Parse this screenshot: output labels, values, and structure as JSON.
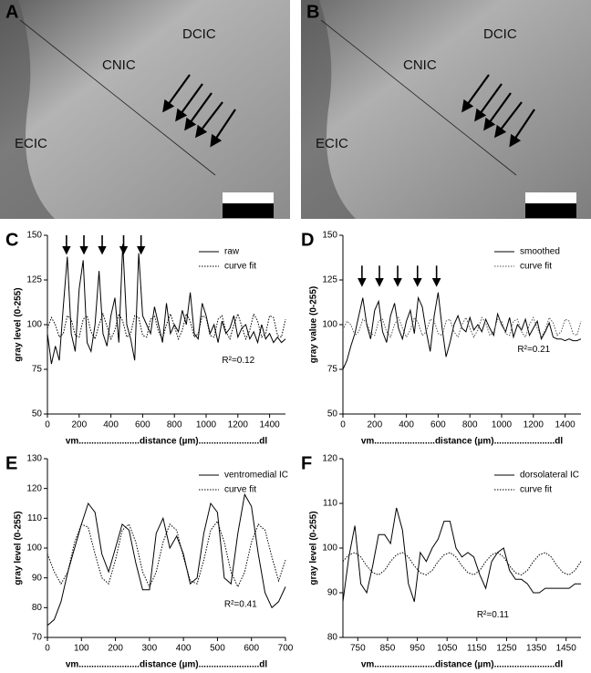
{
  "images": [
    {
      "letter": "A",
      "labels": [
        "DCIC",
        "CNIC",
        "ECIC"
      ]
    },
    {
      "letter": "B",
      "labels": [
        "DCIC",
        "CNIC",
        "ECIC"
      ]
    }
  ],
  "chart_data": [
    {
      "type": "line",
      "panel": "C",
      "ylabel": "gray level (0-255)",
      "xlabel": "vm........................distance (µm)........................dl",
      "x": [
        0,
        25,
        50,
        75,
        100,
        125,
        150,
        175,
        200,
        225,
        250,
        275,
        300,
        325,
        350,
        375,
        400,
        425,
        450,
        475,
        500,
        525,
        550,
        575,
        600,
        625,
        650,
        675,
        700,
        725,
        750,
        775,
        800,
        825,
        850,
        875,
        900,
        925,
        950,
        975,
        1000,
        1025,
        1050,
        1075,
        1100,
        1125,
        1150,
        1175,
        1200,
        1225,
        1250,
        1275,
        1300,
        1325,
        1350,
        1375,
        1400,
        1425,
        1450,
        1475,
        1500
      ],
      "series": [
        {
          "name": "raw",
          "color": "#000000",
          "style": "solid",
          "values": [
            95,
            78,
            88,
            80,
            110,
            138,
            95,
            85,
            120,
            136,
            90,
            85,
            100,
            130,
            95,
            88,
            105,
            115,
            90,
            145,
            100,
            92,
            80,
            140,
            105,
            100,
            95,
            110,
            100,
            90,
            112,
            95,
            100,
            96,
            108,
            100,
            118,
            95,
            92,
            112,
            105,
            95,
            100,
            90,
            102,
            95,
            98,
            105,
            93,
            98,
            100,
            92,
            96,
            90,
            100,
            92,
            95,
            90,
            93,
            90,
            92
          ]
        },
        {
          "name": "curve fit",
          "color": "#000000",
          "style": "dotted",
          "values": [
            98,
            104,
            100,
            93,
            95,
            105,
            103,
            94,
            93,
            103,
            105,
            96,
            92,
            100,
            106,
            99,
            92,
            97,
            106,
            102,
            93,
            95,
            105,
            104,
            94,
            93,
            103,
            105,
            96,
            92,
            100,
            106,
            99,
            92,
            97,
            106,
            102,
            93,
            95,
            105,
            104,
            94,
            93,
            103,
            105,
            96,
            92,
            100,
            106,
            99,
            92,
            97,
            106,
            102,
            93,
            95,
            105,
            104,
            94,
            93,
            103
          ]
        }
      ],
      "xlim": [
        0,
        1500
      ],
      "xticks": [
        0,
        200,
        400,
        600,
        800,
        1000,
        1200,
        1400
      ],
      "ylim": [
        50,
        150
      ],
      "yticks": [
        50,
        75,
        100,
        125,
        150
      ],
      "annotation": {
        "text": "R²=0.12",
        "x": 1100,
        "y": 80
      },
      "arrows": {
        "x": [
          120,
          230,
          345,
          480,
          590
        ],
        "from": 150,
        "to": 139
      },
      "legend": "top-right"
    },
    {
      "type": "line",
      "panel": "D",
      "ylabel": "gray value (0-255)",
      "xlabel": "vm........................distance (µm)........................dl",
      "x": [
        0,
        25,
        50,
        75,
        100,
        125,
        150,
        175,
        200,
        225,
        250,
        275,
        300,
        325,
        350,
        375,
        400,
        425,
        450,
        475,
        500,
        525,
        550,
        575,
        600,
        625,
        650,
        675,
        700,
        725,
        750,
        775,
        800,
        825,
        850,
        875,
        900,
        925,
        950,
        975,
        1000,
        1025,
        1050,
        1075,
        1100,
        1125,
        1150,
        1175,
        1200,
        1225,
        1250,
        1275,
        1300,
        1325,
        1350,
        1375,
        1400,
        1425,
        1450,
        1475,
        1500
      ],
      "series": [
        {
          "name": "smoothed",
          "color": "#000000",
          "style": "solid",
          "values": [
            75,
            80,
            88,
            95,
            105,
            115,
            100,
            92,
            108,
            113,
            96,
            90,
            105,
            112,
            98,
            92,
            102,
            108,
            95,
            115,
            110,
            96,
            85,
            105,
            118,
            98,
            82,
            90,
            100,
            105,
            98,
            96,
            104,
            97,
            100,
            96,
            103,
            98,
            94,
            106,
            100,
            96,
            104,
            93,
            100,
            97,
            103,
            94,
            98,
            102,
            92,
            96,
            101,
            93,
            92,
            92,
            91,
            92,
            91,
            91,
            92
          ]
        },
        {
          "name": "curve fit",
          "color": "#555555",
          "style": "dotted",
          "values": [
            97,
            102,
            100,
            94,
            96,
            103,
            101,
            95,
            94,
            102,
            103,
            96,
            93,
            100,
            104,
            98,
            93,
            97,
            104,
            101,
            94,
            96,
            103,
            102,
            95,
            94,
            102,
            103,
            96,
            93,
            100,
            104,
            98,
            93,
            97,
            104,
            101,
            94,
            96,
            103,
            102,
            95,
            94,
            102,
            103,
            96,
            93,
            100,
            104,
            98,
            93,
            97,
            104,
            101,
            94,
            96,
            103,
            102,
            95,
            94,
            102
          ]
        }
      ],
      "xlim": [
        0,
        1500
      ],
      "xticks": [
        0,
        200,
        400,
        600,
        800,
        1000,
        1200,
        1400
      ],
      "ylim": [
        50,
        150
      ],
      "yticks": [
        50,
        75,
        100,
        125,
        150
      ],
      "annotation": {
        "text": "R²=0.21",
        "x": 1100,
        "y": 86
      },
      "arrows": {
        "x": [
          120,
          230,
          345,
          470,
          590
        ],
        "from": 133,
        "to": 121
      },
      "legend": "top-right"
    },
    {
      "type": "line",
      "panel": "E",
      "ylabel": "gray level (0-255)",
      "xlabel": "vm........................distance (µm)........................dl",
      "x": [
        0,
        20,
        40,
        60,
        80,
        100,
        120,
        140,
        160,
        180,
        200,
        220,
        240,
        260,
        280,
        300,
        320,
        340,
        360,
        380,
        400,
        420,
        440,
        460,
        480,
        500,
        520,
        540,
        560,
        580,
        600,
        620,
        640,
        660,
        680,
        700
      ],
      "series": [
        {
          "name": "ventromedial IC",
          "color": "#000000",
          "style": "solid",
          "values": [
            74,
            76,
            82,
            92,
            100,
            108,
            115,
            112,
            98,
            92,
            100,
            108,
            106,
            95,
            86,
            86,
            105,
            110,
            100,
            104,
            98,
            88,
            90,
            105,
            115,
            112,
            90,
            88,
            105,
            118,
            114,
            98,
            85,
            80,
            82,
            87
          ]
        },
        {
          "name": "curve fit",
          "color": "#000000",
          "style": "dotted",
          "values": [
            98,
            92,
            88,
            92,
            102,
            108,
            107,
            98,
            90,
            88,
            96,
            106,
            108,
            102,
            92,
            87,
            92,
            102,
            108,
            106,
            97,
            89,
            88,
            96,
            106,
            109,
            102,
            92,
            87,
            92,
            102,
            108,
            106,
            97,
            89,
            96
          ]
        }
      ],
      "xlim": [
        0,
        700
      ],
      "xticks": [
        0,
        100,
        200,
        300,
        400,
        500,
        600,
        700
      ],
      "ylim": [
        70,
        130
      ],
      "yticks": [
        70,
        80,
        90,
        100,
        110,
        120,
        130
      ],
      "annotation": {
        "text": "R²=0.41",
        "x": 520,
        "y": 81
      },
      "legend": "top-right"
    },
    {
      "type": "line",
      "panel": "F",
      "ylabel": "gray level (0-255)",
      "xlabel": "vm........................distance (µm)........................dl",
      "x": [
        700,
        720,
        740,
        760,
        780,
        800,
        820,
        840,
        860,
        880,
        900,
        920,
        940,
        960,
        980,
        1000,
        1020,
        1040,
        1060,
        1080,
        1100,
        1120,
        1140,
        1160,
        1180,
        1200,
        1220,
        1240,
        1260,
        1280,
        1300,
        1320,
        1340,
        1360,
        1380,
        1400,
        1420,
        1440,
        1460,
        1480,
        1500
      ],
      "series": [
        {
          "name": "dorsolateral IC",
          "color": "#000000",
          "style": "solid",
          "values": [
            88,
            98,
            105,
            92,
            90,
            96,
            103,
            103,
            101,
            109,
            104,
            92,
            88,
            99,
            97,
            100,
            102,
            106,
            106,
            100,
            98,
            99,
            98,
            94,
            91,
            97,
            99,
            100,
            95,
            93,
            93,
            92,
            90,
            90,
            91,
            91,
            91,
            91,
            91,
            92,
            92
          ]
        },
        {
          "name": "curve fit",
          "color": "#000000",
          "style": "dotted",
          "values": [
            97,
            98.5,
            99,
            98,
            96,
            94.5,
            94,
            95,
            97,
            98.5,
            99,
            98,
            96,
            94.5,
            94,
            95,
            97,
            98.5,
            99,
            98,
            96,
            94.5,
            94,
            95,
            97,
            98.5,
            99,
            98,
            96,
            94.5,
            94,
            95,
            97,
            98.5,
            99,
            98,
            96,
            94.5,
            94,
            95,
            97
          ]
        }
      ],
      "xlim": [
        700,
        1500
      ],
      "xticks": [
        750,
        850,
        950,
        1050,
        1150,
        1250,
        1350,
        1450
      ],
      "ylim": [
        80,
        120
      ],
      "yticks": [
        80,
        90,
        100,
        110,
        120
      ],
      "annotation": {
        "text": "R²=0.11",
        "x": 1150,
        "y": 85
      },
      "legend": "top-right"
    }
  ]
}
